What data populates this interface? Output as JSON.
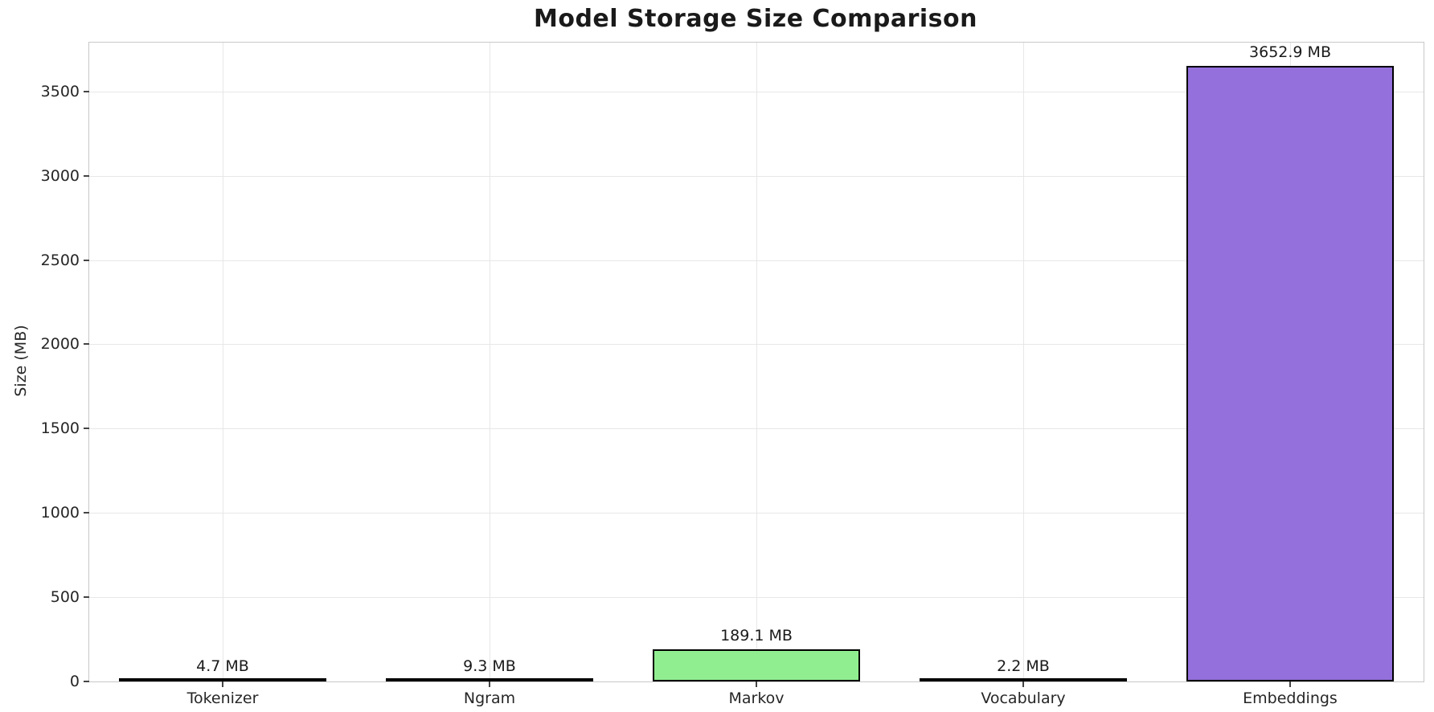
{
  "chart_data": {
    "type": "bar",
    "title": "Model Storage Size Comparison",
    "xlabel": "",
    "ylabel": "Size (MB)",
    "categories": [
      "Tokenizer",
      "Ngram",
      "Markov",
      "Vocabulary",
      "Embeddings"
    ],
    "values": [
      4.7,
      9.3,
      189.1,
      2.2,
      3652.9
    ],
    "value_labels": [
      "4.7 MB",
      "9.3 MB",
      "189.1 MB",
      "2.2 MB",
      "3652.9 MB"
    ],
    "bar_colors": [
      "#d8d8d8",
      "#d8d8d8",
      "#90ee90",
      "#d8d8d8",
      "#9370db"
    ],
    "bar_edge_color": "#000000",
    "yticks": [
      0,
      500,
      1000,
      1500,
      2000,
      2500,
      3000,
      3500
    ],
    "ylim": [
      0,
      3790
    ],
    "grid": true,
    "legend": "none"
  }
}
